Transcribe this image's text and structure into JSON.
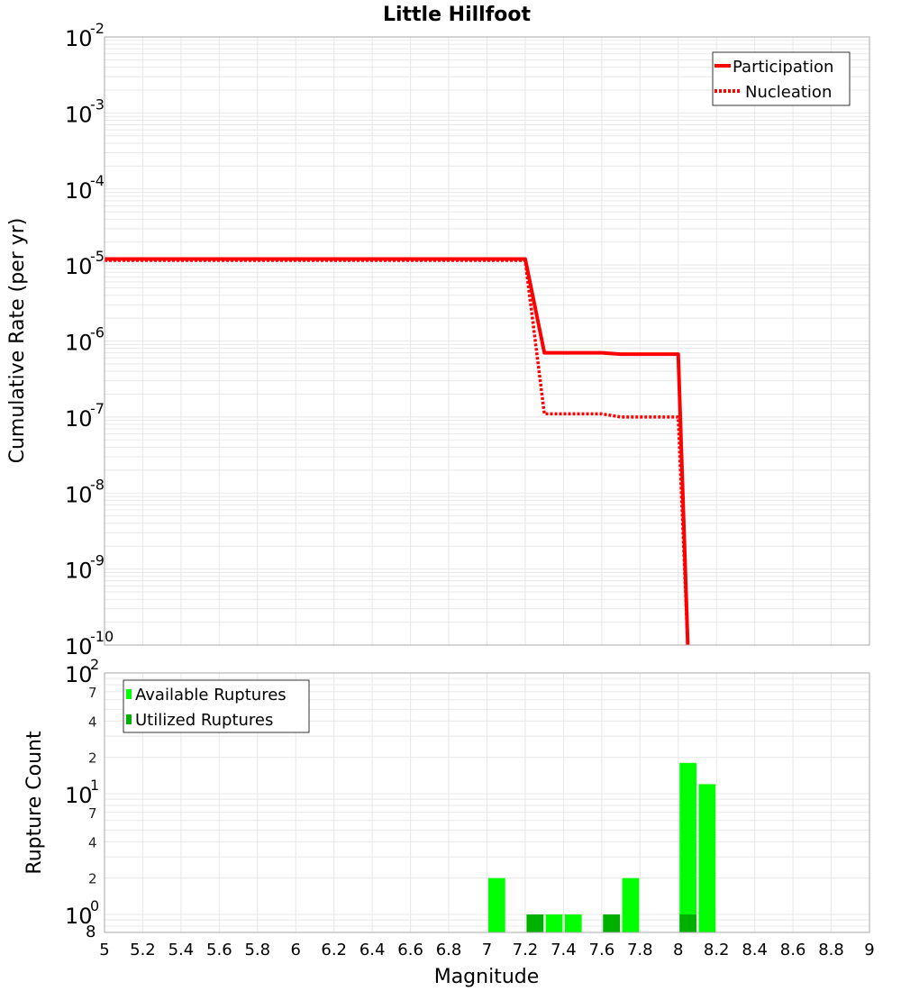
{
  "chart_data": [
    {
      "type": "line",
      "title": "Little Hillfoot",
      "xlabel": "Magnitude",
      "ylabel": "Cumulative Rate (per yr)",
      "yscale": "log",
      "xlim": [
        5,
        9
      ],
      "ylim": [
        1e-10,
        0.01
      ],
      "x_ticks": [
        "5",
        "5.2",
        "5.4",
        "5.6",
        "5.8",
        "6",
        "6.2",
        "6.4",
        "6.6",
        "6.8",
        "7",
        "7.2",
        "7.4",
        "7.6",
        "7.8",
        "8",
        "8.2",
        "8.4",
        "8.6",
        "8.8",
        "9"
      ],
      "y_ticks": [
        "10^-2",
        "10^-3",
        "10^-4",
        "10^-5",
        "10^-6",
        "10^-7",
        "10^-8",
        "10^-9",
        "10^-10"
      ],
      "grid": true,
      "legend_position": "top-right",
      "series": [
        {
          "name": "Participation",
          "style": "solid",
          "color": "#ff0000",
          "x": [
            5.0,
            7.2,
            7.3,
            7.6,
            7.7,
            8.0,
            8.05
          ],
          "y": [
            1.2e-05,
            1.2e-05,
            7e-07,
            7e-07,
            6.7e-07,
            6.7e-07,
            1e-10
          ]
        },
        {
          "name": "Nucleation",
          "style": "dotted",
          "color": "#ff0000",
          "x": [
            5.0,
            7.2,
            7.3,
            7.6,
            7.7,
            8.0,
            8.05
          ],
          "y": [
            1.15e-05,
            1.15e-05,
            1.1e-07,
            1.1e-07,
            1e-07,
            1e-07,
            1e-10
          ]
        }
      ]
    },
    {
      "type": "bar",
      "xlabel": "Magnitude",
      "ylabel": "Rupture Count",
      "yscale": "log",
      "xlim": [
        5,
        9
      ],
      "ylim": [
        0.72,
        100
      ],
      "y_ticks_major": [
        "10^0",
        "10^1",
        "10^2"
      ],
      "y_ticks_minor": [
        "8",
        "2",
        "4",
        "7",
        "2",
        "4",
        "7"
      ],
      "grid": true,
      "legend_position": "top-left",
      "bin_width": 0.1,
      "series": [
        {
          "name": "Available Ruptures",
          "color": "#00ff00",
          "bins": [
            {
              "x0": 7.0,
              "x1": 7.1,
              "value": 2
            },
            {
              "x0": 7.2,
              "x1": 7.3,
              "value": 1
            },
            {
              "x0": 7.3,
              "x1": 7.4,
              "value": 1
            },
            {
              "x0": 7.4,
              "x1": 7.5,
              "value": 1
            },
            {
              "x0": 7.6,
              "x1": 7.7,
              "value": 1
            },
            {
              "x0": 7.7,
              "x1": 7.8,
              "value": 2
            },
            {
              "x0": 8.0,
              "x1": 8.1,
              "value": 18
            },
            {
              "x0": 8.1,
              "x1": 8.2,
              "value": 12
            }
          ]
        },
        {
          "name": "Utilized Ruptures",
          "color": "#00b000",
          "bins": [
            {
              "x0": 7.2,
              "x1": 7.3,
              "value": 1
            },
            {
              "x0": 7.6,
              "x1": 7.7,
              "value": 1
            },
            {
              "x0": 8.0,
              "x1": 8.1,
              "value": 1
            }
          ]
        }
      ]
    }
  ],
  "labels": {
    "title": "Little Hillfoot",
    "top_ylabel": "Cumulative Rate (per yr)",
    "bottom_ylabel": "Rupture Count",
    "xlabel": "Magnitude",
    "legend_top": [
      "Participation",
      "Nucleation"
    ],
    "legend_bottom": [
      "Available Ruptures",
      "Utilized Ruptures"
    ]
  },
  "colors": {
    "line": "#ff0000",
    "available": "#00ff00",
    "utilized": "#00b000",
    "grid": "#e8e8e8",
    "frame": "#aaaaaa"
  }
}
